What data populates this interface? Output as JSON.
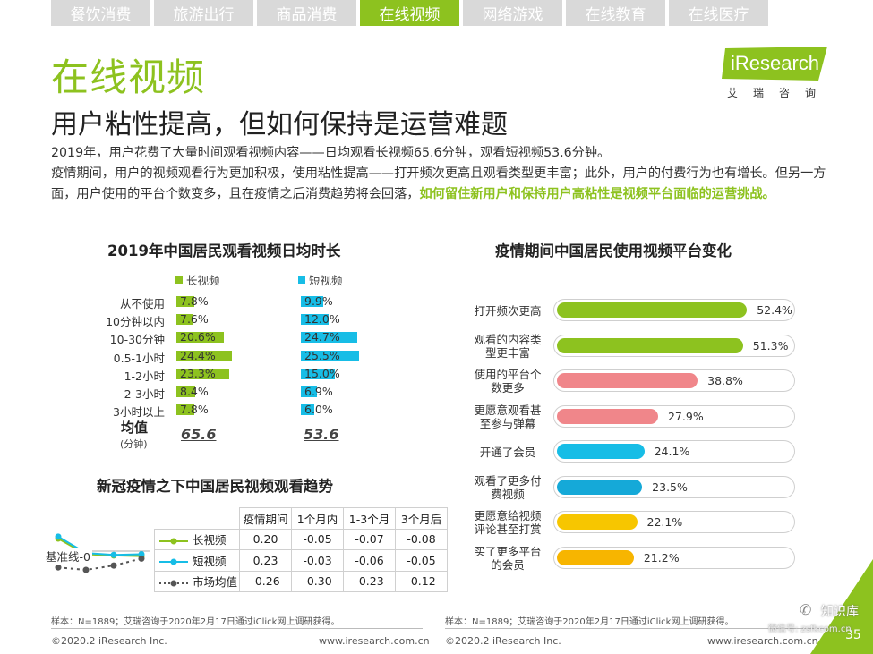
{
  "tabs": [
    "餐饮消费",
    "旅游出行",
    "商品消费",
    "在线视频",
    "网络游戏",
    "在线教育",
    "在线医疗"
  ],
  "active_tab": 3,
  "title": "在线视频",
  "subtitle": "用户粘性提高，但如何保持是运营难题",
  "logo": {
    "text": "iResearch",
    "cn": "艾瑞咨询"
  },
  "paragraph": {
    "line1": "2019年，用户花费了大量时间观看视频内容——日均观看长视频65.6分钟，观看短视频53.6分钟。",
    "line2": "疫情期间，用户的视频观看行为更加积极，使用粘性提高——打开频次更高且观看类型更丰富；此外，用户的付费行为也有增长。但另一方面，用户使用的平台个数变多，且在疫情之后消费趋势将会回落，",
    "highlight": "如何留住新用户和保持用户高粘性是视频平台面临的运营挑战。"
  },
  "colors": {
    "green": "#8dc21f",
    "blue": "#17bde6",
    "grey": "#555555",
    "pink": "#f0868a",
    "teal": "#15a9d8",
    "yellow": "#f7c600"
  },
  "chart_data": [
    {
      "type": "bar",
      "title": "2019年中国居民观看视频日均时长",
      "categories": [
        "从不使用",
        "10分钟以内",
        "10-30分钟",
        "0.5-1小时",
        "1-2小时",
        "2-3小时",
        "3小时以上"
      ],
      "series": [
        {
          "name": "长视频",
          "values": [
            7.8,
            7.6,
            20.6,
            24.4,
            23.3,
            8.4,
            7.8
          ],
          "labels": [
            "7.8%",
            "7.6%",
            "20.6%",
            "24.4%",
            "23.3%",
            "8.4%",
            "7.8%"
          ]
        },
        {
          "name": "短视频",
          "values": [
            9.9,
            12.0,
            24.7,
            25.5,
            15.0,
            6.9,
            6.0
          ],
          "labels": [
            "9.9%",
            "12.0%",
            "24.7%",
            "25.5%",
            "15.0%",
            "6.9%",
            "6.0%"
          ]
        }
      ],
      "average": {
        "label": "均值",
        "unit": "(分钟)",
        "values": [
          "65.6",
          "53.6"
        ]
      }
    },
    {
      "type": "line",
      "title": "新冠疫情之下中国居民视频观看趋势",
      "baseline_label": "基准线-0",
      "x": [
        "疫情期间",
        "1个月内",
        "1-3个月",
        "3个月后"
      ],
      "series": [
        {
          "name": "长视频",
          "values": [
            0.2,
            -0.05,
            -0.07,
            -0.08
          ],
          "labels": [
            "0.20",
            "-0.05",
            "-0.07",
            "-0.08"
          ]
        },
        {
          "name": "短视频",
          "values": [
            0.23,
            -0.03,
            -0.06,
            -0.05
          ],
          "labels": [
            "0.23",
            "-0.03",
            "-0.06",
            "-0.05"
          ]
        },
        {
          "name": "市场均值",
          "values": [
            -0.26,
            -0.3,
            -0.23,
            -0.12
          ],
          "labels": [
            "-0.26",
            "-0.30",
            "-0.23",
            "-0.12"
          ]
        }
      ]
    },
    {
      "type": "bar",
      "title": "疫情期间中国居民使用视频平台变化",
      "categories": [
        "打开频次更高",
        "观看的内容类型更丰富",
        "使用的平台个数更多",
        "更愿意观看甚至参与弹幕",
        "开通了会员",
        "观看了更多付费视频",
        "更愿意给视频评论甚至打赏",
        "买了更多平台的会员"
      ],
      "category_lines": [
        [
          "打开频次更高"
        ],
        [
          "观看的内容类",
          "型更丰富"
        ],
        [
          "使用的平台个",
          "数更多"
        ],
        [
          "更愿意观看甚",
          "至参与弹幕"
        ],
        [
          "开通了会员"
        ],
        [
          "观看了更多付",
          "费视频"
        ],
        [
          "更愿意给视频",
          "评论甚至打赏"
        ],
        [
          "买了更多平台",
          "的会员"
        ]
      ],
      "values": [
        52.4,
        51.3,
        38.8,
        27.9,
        24.1,
        23.5,
        22.1,
        21.2
      ],
      "labels": [
        "52.4%",
        "51.3%",
        "38.8%",
        "27.9%",
        "24.1%",
        "23.5%",
        "22.1%",
        "21.2%"
      ],
      "colors": [
        "#8dc21f",
        "#8dc21f",
        "#f0868a",
        "#f0868a",
        "#17bde6",
        "#15a9d8",
        "#f7c600",
        "#f7b500"
      ]
    }
  ],
  "footnote_left": "样本：N=1889；艾瑞咨询于2020年2月17日通过iClick网上调研获得。",
  "footnote_right": "样本：N=1889；艾瑞咨询于2020年2月17日通过iClick网上调研获得。",
  "footer": {
    "copyright_left": "©2020.2 iResearch Inc.",
    "url_left": "www.iresearch.com.cn",
    "copyright_right": "©2020.2 iResearch Inc.",
    "url_right": "www.iresearch.com.cn",
    "page": "35",
    "watermark": "知识库",
    "watermark_sub": "微信号: zsfkcom.cn"
  }
}
